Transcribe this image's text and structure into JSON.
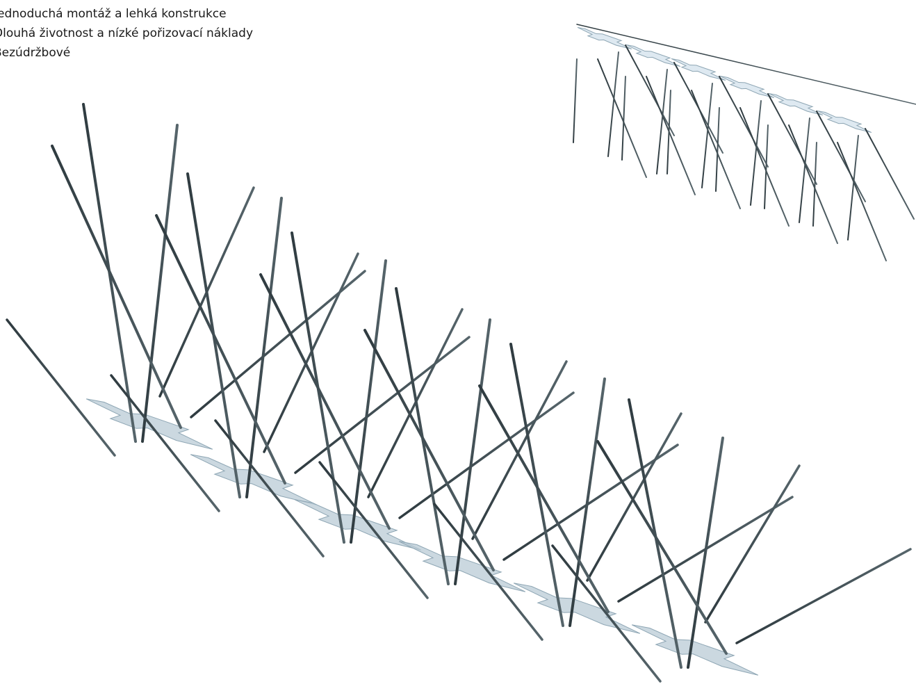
{
  "features": [
    "Jednoduchá montáž a lehká konstrukce",
    "Dlouhá životnost a nízké pořizovací náklady",
    "Bezúdržbové"
  ]
}
